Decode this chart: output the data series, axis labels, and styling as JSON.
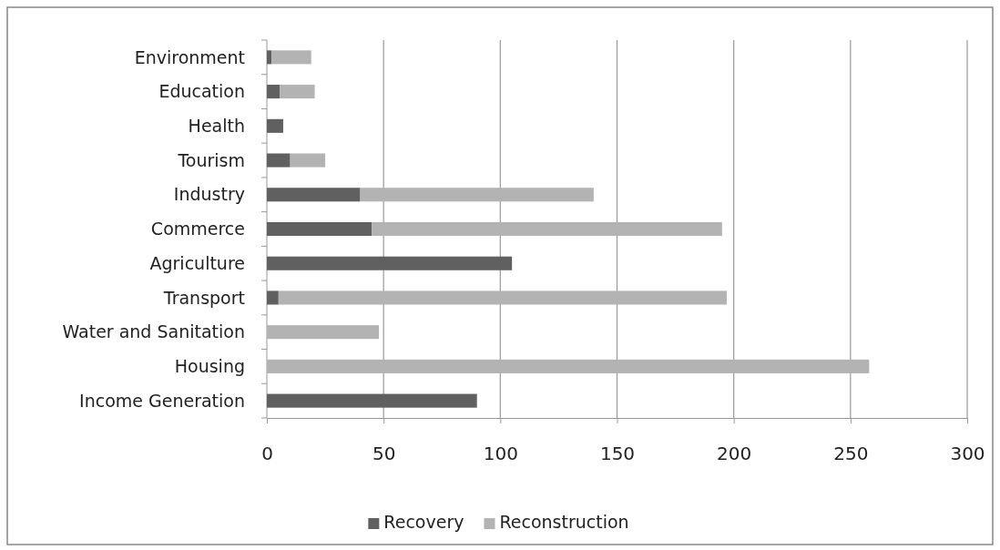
{
  "chart_data": {
    "type": "bar",
    "orientation": "horizontal",
    "stacked": true,
    "categories": [
      "Environment",
      "Education",
      "Health",
      "Tourism",
      "Industry",
      "Commerce",
      "Agriculture",
      "Transport",
      "Water and Sanitation",
      "Housing",
      "Income Generation"
    ],
    "series": [
      {
        "name": "Recovery",
        "color": "#606060",
        "values": [
          2,
          5.5,
          7,
          10,
          40,
          45,
          105,
          5,
          0,
          0,
          90
        ]
      },
      {
        "name": "Reconstruction",
        "color": "#b3b3b3",
        "values": [
          17,
          15,
          0,
          15,
          100,
          150,
          0,
          192,
          48,
          258,
          0
        ]
      }
    ],
    "xlim": [
      0,
      300
    ],
    "xticks": [
      0,
      50,
      100,
      150,
      200,
      250,
      300
    ],
    "grid": "x",
    "legend": "bottom"
  }
}
